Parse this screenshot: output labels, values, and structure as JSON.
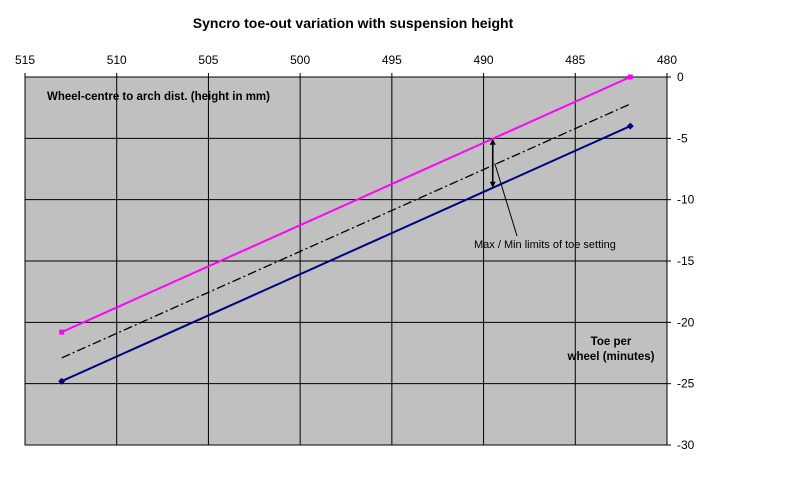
{
  "chart_data": {
    "type": "line",
    "title": "Syncro toe-out variation with suspension height",
    "xlabel": "Wheel-centre to arch dist. (height in mm)",
    "ylabel_lines": [
      "Toe per",
      "wheel (minutes)"
    ],
    "xlim": [
      515,
      480
    ],
    "ylim": [
      -30,
      0
    ],
    "x_reversed": true,
    "x_ticks": [
      515,
      510,
      505,
      500,
      495,
      490,
      485,
      480
    ],
    "y_ticks": [
      0,
      -5,
      -10,
      -15,
      -20,
      -25,
      -30
    ],
    "grid": true,
    "plot_background": "#c0c0c0",
    "annotation": "Max / Min limits of toe setting",
    "series": [
      {
        "color": "#ff00ff",
        "style": "solid",
        "marker": "square",
        "x": [
          513,
          482
        ],
        "y": [
          -20.8,
          0
        ]
      },
      {
        "color": "#000000",
        "style": "dashdot",
        "marker": "none",
        "x": [
          513,
          482
        ],
        "y": [
          -22.9,
          -2.2
        ]
      },
      {
        "color": "#000080",
        "style": "solid",
        "marker": "diamond",
        "x": [
          513,
          482
        ],
        "y": [
          -24.8,
          -4.0
        ]
      }
    ],
    "arrow_x": 489.5
  }
}
